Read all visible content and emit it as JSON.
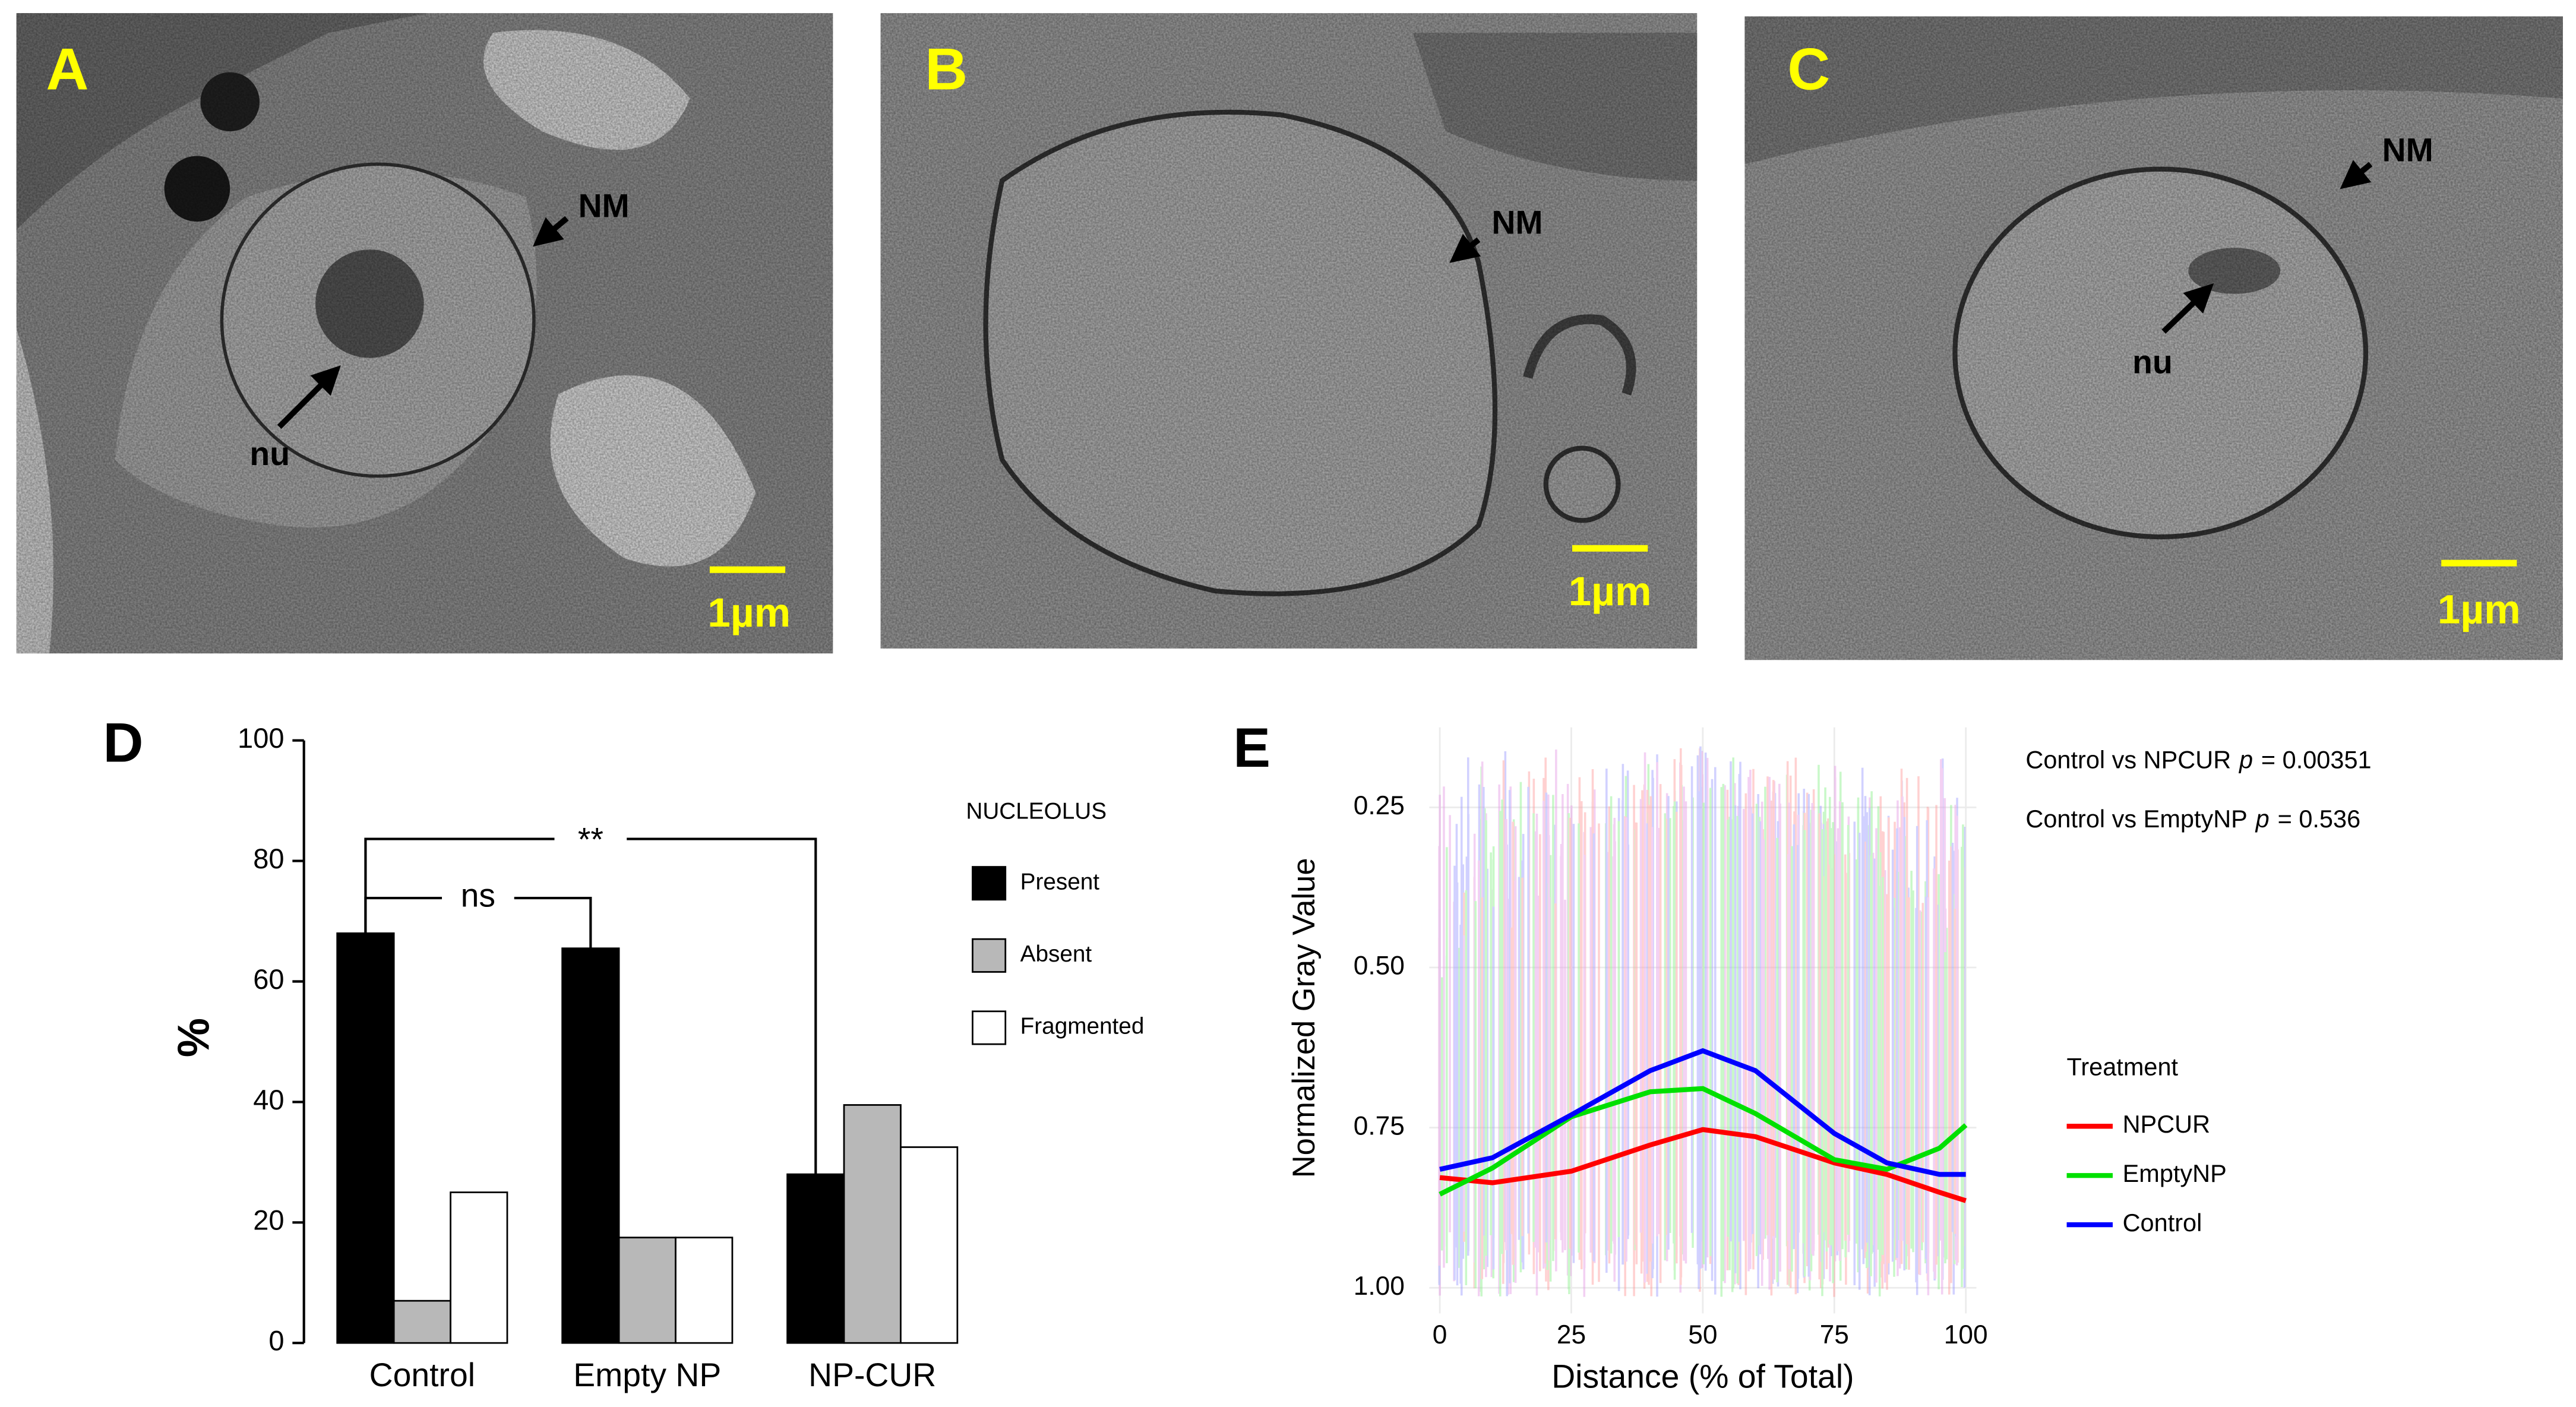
{
  "panels": [
    {
      "label": "A",
      "annotations": [
        "NM",
        "nu"
      ],
      "scale_bar": "1µm"
    },
    {
      "label": "B",
      "annotations": [
        "NM"
      ],
      "scale_bar": "1µm"
    },
    {
      "label": "C",
      "annotations": [
        "NM",
        "nu"
      ],
      "scale_bar": "1µm"
    }
  ],
  "chart_data": [
    {
      "type": "bar",
      "panel_label": "D",
      "ylabel": "%",
      "legend_title": "NUCLEOLUS",
      "categories": [
        "Control",
        "Empty NP",
        "NP-CUR"
      ],
      "series": [
        {
          "name": "Present",
          "color": "#000000",
          "values": [
            68,
            65.5,
            28
          ]
        },
        {
          "name": "Absent",
          "color": "#b8b8b8",
          "values": [
            7,
            17.5,
            39.5
          ]
        },
        {
          "name": "Fragmented",
          "color": "#ffffff",
          "values": [
            25,
            17.5,
            32.5
          ]
        }
      ],
      "ylim": [
        0,
        100
      ],
      "yticks": [
        0,
        20,
        40,
        60,
        80,
        100
      ],
      "annotations": [
        "**",
        "ns"
      ]
    },
    {
      "type": "line",
      "panel_label": "E",
      "xlabel": "Distance (% of Total)",
      "ylabel": "Normalized Gray Value",
      "legend_title": "Treatment",
      "grid": true,
      "x": [
        0,
        10,
        25,
        40,
        50,
        60,
        75,
        85,
        95,
        100
      ],
      "series": [
        {
          "name": "NPCUR",
          "color": "#ff0000",
          "values": [
            0.828,
            0.836,
            0.818,
            0.777,
            0.753,
            0.764,
            0.805,
            0.823,
            0.851,
            0.864
          ]
        },
        {
          "name": "EmptyNP",
          "color": "#00e000",
          "values": [
            0.854,
            0.813,
            0.733,
            0.694,
            0.689,
            0.728,
            0.8,
            0.815,
            0.782,
            0.746
          ]
        },
        {
          "name": "Control",
          "color": "#0000ff",
          "values": [
            0.815,
            0.797,
            0.73,
            0.661,
            0.63,
            0.661,
            0.759,
            0.805,
            0.823,
            0.823
          ]
        }
      ],
      "xlim": [
        -2,
        102
      ],
      "xticks": [
        0,
        25,
        50,
        75,
        100
      ],
      "ylim": [
        1.04,
        0.125
      ],
      "yticks": [
        0.25,
        {
          "value": 0.5,
          "label": "0.50"
        },
        0.75,
        {
          "value": 1,
          "label": "1.00"
        }
      ],
      "annotations": [
        {
          "prefix": "Control vs NPCUR",
          "italic": "p",
          "suffix": "= 0.00351"
        },
        {
          "prefix": "Control vs EmptyNP",
          "italic": "p",
          "suffix": "= 0.536"
        }
      ]
    }
  ]
}
